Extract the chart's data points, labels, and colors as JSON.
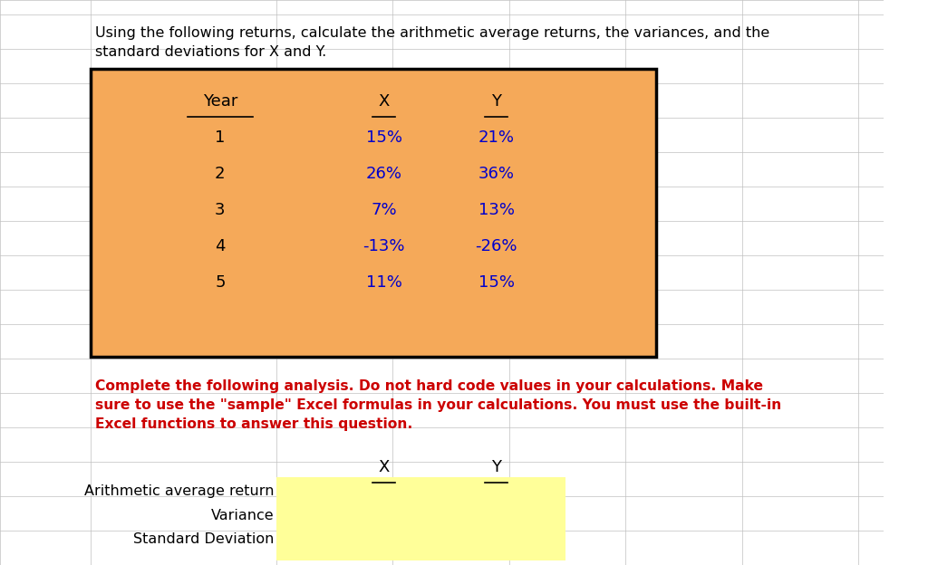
{
  "title_text": "Using the following returns, calculate the arithmetic average returns, the variances, and the\nstandard deviations for X and Y.",
  "years": [
    "Year",
    "1",
    "2",
    "3",
    "4",
    "5"
  ],
  "x_vals": [
    "X",
    "15%",
    "26%",
    "7%",
    "-13%",
    "11%"
  ],
  "y_vals": [
    "Y",
    "21%",
    "36%",
    "13%",
    "-26%",
    "15%"
  ],
  "orange_bg": "#F5A959",
  "yellow_bg": "#FFFF99",
  "red_color": "#CC0000",
  "blue_color": "#0000CC",
  "black_color": "#000000",
  "grid_color": "#C0C0C0",
  "instruction_text": "Complete the following analysis. Do not hard code values in your calculations. Make\nsure to use the \"sample\" Excel formulas in your calculations. You must use the built-in\nExcel functions to answer this question.",
  "row_labels": [
    "Arithmetic average return",
    "Variance",
    "Standard Deviation"
  ],
  "bottom_headers": [
    "X",
    "Y"
  ],
  "bg_color": "#FFFFFF"
}
